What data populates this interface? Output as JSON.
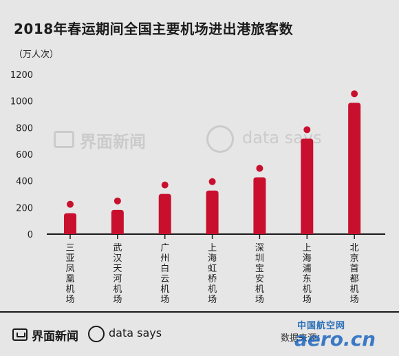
{
  "header": {
    "title": "2018年春运期间全国主要机场进出港旅客数",
    "unit": "（万人次）"
  },
  "footer": {
    "brand": "界面新闻",
    "data_says": "data says",
    "source": "数据来源：",
    "site_name": "中国航空网",
    "site_domain": "aero.cn"
  },
  "watermark": {
    "brand": "界面新闻",
    "data_says": "data says"
  },
  "colors": {
    "bar": "#c8102e",
    "background": "#e6e6e6",
    "axis": "#1a1a1a"
  },
  "chart_data": {
    "type": "bar",
    "categories": [
      "三亚凤凰机场",
      "武汉天河机场",
      "广州白云机场",
      "上海虹桥机场",
      "深圳宝安机场",
      "上海浦东机场",
      "北京首都机场"
    ],
    "values": [
      250,
      275,
      395,
      420,
      520,
      810,
      1080
    ],
    "ylim": [
      0,
      1200
    ],
    "yticks": [
      0,
      200,
      400,
      600,
      800,
      1000,
      1200
    ],
    "ylabel": "（万人次）",
    "grid": false,
    "legend": "none"
  }
}
